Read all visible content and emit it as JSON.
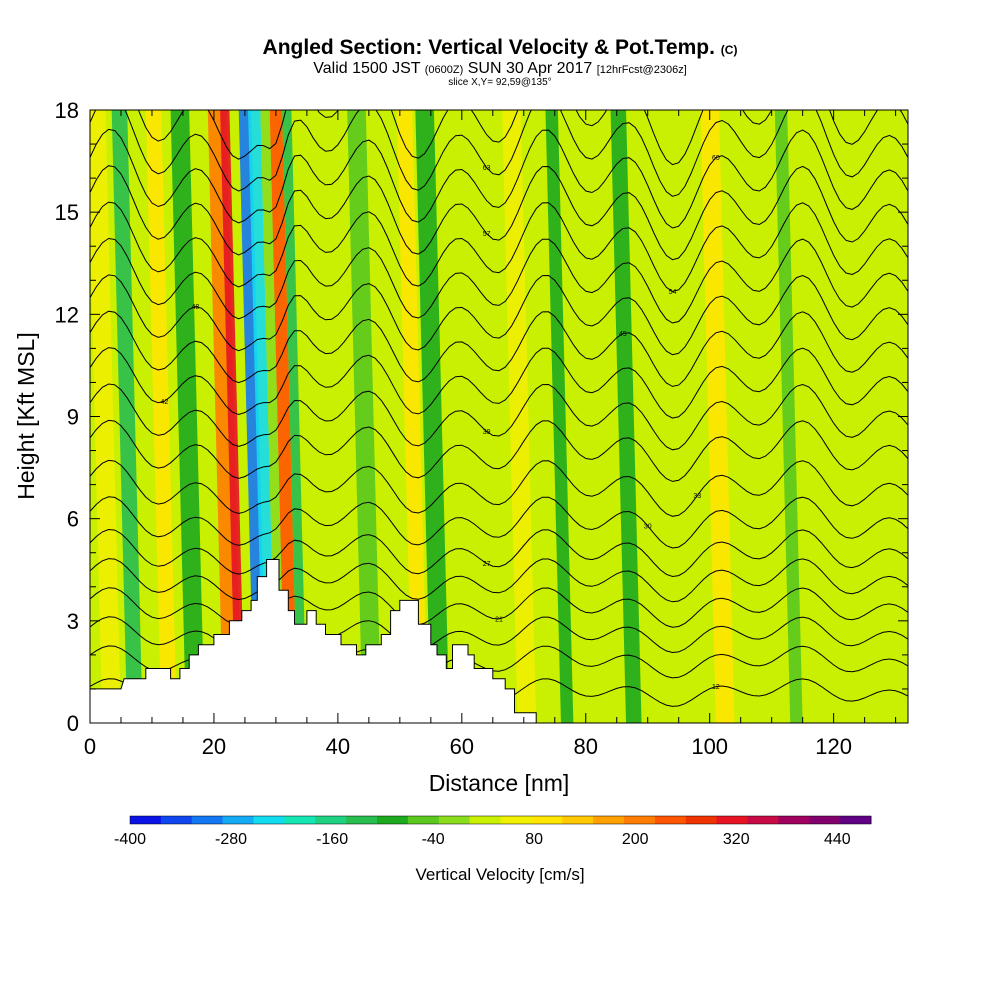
{
  "titles": {
    "main": "Angled Section: Vertical Velocity & Pot.Temp.",
    "main_unit": "(C)",
    "valid_a": "Valid 1500 JST",
    "valid_b": "(0600Z)",
    "valid_c": "SUN 30 Apr 2017",
    "valid_d": "[12hrFcst@2306z]",
    "slice": "slice X,Y= 92,59@135°"
  },
  "chart_data": {
    "type": "heatmap",
    "xlabel": "Distance [nm]",
    "ylabel": "Height [Kft MSL]",
    "xlim": [
      0,
      132
    ],
    "ylim": [
      0,
      18
    ],
    "x_ticks": [
      0,
      20,
      40,
      60,
      80,
      100,
      120
    ],
    "y_ticks": [
      0,
      3,
      6,
      9,
      12,
      15,
      18
    ],
    "colorbar": {
      "label": "Vertical Velocity [cm/s]",
      "range": [
        -400,
        480
      ],
      "step": 40,
      "tick_labels": [
        -400,
        -280,
        -160,
        -40,
        80,
        200,
        320,
        440
      ],
      "colors": [
        "#0a14e6",
        "#0f46f0",
        "#1478f5",
        "#14aaf5",
        "#14dcf0",
        "#14e6b4",
        "#1ed282",
        "#28be50",
        "#1eaa1e",
        "#5ac81e",
        "#8cdc1e",
        "#c8f000",
        "#f0f000",
        "#ffe600",
        "#ffc800",
        "#ffa000",
        "#ff7d00",
        "#ff5500",
        "#f03200",
        "#e61423",
        "#c80a46",
        "#a0005f",
        "#82006e",
        "#600085"
      ]
    },
    "terrain_profile": {
      "x": [
        0,
        5,
        5.5,
        9,
        9,
        13,
        13,
        14.5,
        14.5,
        16,
        16,
        17.5,
        17.5,
        20,
        20,
        22.5,
        22.5,
        24.5,
        24.5,
        26,
        26,
        27,
        27,
        28.5,
        28.5,
        30.5,
        30.5,
        32,
        32,
        33,
        33,
        35,
        35,
        36.5,
        36.5,
        38,
        38,
        40.5,
        40.5,
        43,
        43,
        44.5,
        44.5,
        47,
        47,
        48.5,
        48.5,
        50,
        50,
        53,
        53,
        55,
        55,
        56,
        56,
        57.5,
        57.5,
        58.5,
        58.5,
        61,
        61,
        62,
        62,
        65,
        65,
        67,
        67,
        68.5,
        68.5,
        72,
        72,
        132
      ],
      "height": [
        1.0,
        1.0,
        1.3,
        1.3,
        1.6,
        1.6,
        1.3,
        1.3,
        1.6,
        1.6,
        2.0,
        2.0,
        2.3,
        2.3,
        2.6,
        2.6,
        3.0,
        3.0,
        3.3,
        3.3,
        3.6,
        3.6,
        4.3,
        4.3,
        4.8,
        4.8,
        3.9,
        3.9,
        3.3,
        3.3,
        2.9,
        2.9,
        3.3,
        3.3,
        2.9,
        2.9,
        2.6,
        2.6,
        2.3,
        2.3,
        2.0,
        2.0,
        2.3,
        2.3,
        2.6,
        2.6,
        3.3,
        3.3,
        3.6,
        3.6,
        2.9,
        2.9,
        2.3,
        2.3,
        2.0,
        2.0,
        1.6,
        1.6,
        2.3,
        2.3,
        2.0,
        2.0,
        1.6,
        1.6,
        1.3,
        1.3,
        1.0,
        1.0,
        0.3,
        0.3,
        0.0,
        0.0
      ]
    },
    "velocity_bands": [
      {
        "x": 2,
        "width": 3,
        "value": 80
      },
      {
        "x": 6,
        "width": 2.5,
        "value": -120
      },
      {
        "x": 11.5,
        "width": 2.5,
        "value": 120
      },
      {
        "x": 15.5,
        "width": 3,
        "value": -80
      },
      {
        "x": 21.5,
        "width": 3,
        "value": 240
      },
      {
        "x": 23.5,
        "width": 1.5,
        "value": 360
      },
      {
        "x": 26.5,
        "width": 2,
        "value": -320
      },
      {
        "x": 28,
        "width": 2,
        "value": -240
      },
      {
        "x": 30,
        "width": 1.5,
        "value": 0
      },
      {
        "x": 31.5,
        "width": 2,
        "value": 280
      },
      {
        "x": 33.5,
        "width": 1.5,
        "value": -120
      },
      {
        "x": 44,
        "width": 3,
        "value": -40
      },
      {
        "x": 52,
        "width": 2.5,
        "value": 120
      },
      {
        "x": 55,
        "width": 3,
        "value": -80
      },
      {
        "x": 69,
        "width": 3,
        "value": 80
      },
      {
        "x": 76,
        "width": 2,
        "value": -60
      },
      {
        "x": 86.5,
        "width": 2.5,
        "value": -80
      },
      {
        "x": 101,
        "width": 3,
        "value": 120
      },
      {
        "x": 113,
        "width": 2,
        "value": -20
      }
    ],
    "isentropes": [
      {
        "base": 0.9,
        "label": "12",
        "label_x": 101
      },
      {
        "base": 1.8
      },
      {
        "base": 2.6
      },
      {
        "base": 3.4,
        "label": "21",
        "label_x": 66
      },
      {
        "base": 4.2
      },
      {
        "base": 5.0,
        "label": "27",
        "label_x": 64
      },
      {
        "base": 5.9,
        "label": "30",
        "label_x": 90
      },
      {
        "base": 6.9,
        "label": "33",
        "label_x": 98
      },
      {
        "base": 8.0
      },
      {
        "base": 9.0,
        "label": "39",
        "label_x": 64
      },
      {
        "base": 10.0,
        "label": "42",
        "label_x": 12
      },
      {
        "base": 11.0,
        "label": "45",
        "label_x": 86
      },
      {
        "base": 12.0,
        "label": "48",
        "label_x": 17
      },
      {
        "base": 13.0
      },
      {
        "base": 14.0,
        "label": "54",
        "label_x": 94
      },
      {
        "base": 15.0,
        "label": "57",
        "label_x": 64
      },
      {
        "base": 16.0,
        "label": "60",
        "label_x": 101
      },
      {
        "base": 17.0,
        "label": "63",
        "label_x": 64
      },
      {
        "base": 18.0
      }
    ],
    "grid": false,
    "legend": "bottom"
  }
}
